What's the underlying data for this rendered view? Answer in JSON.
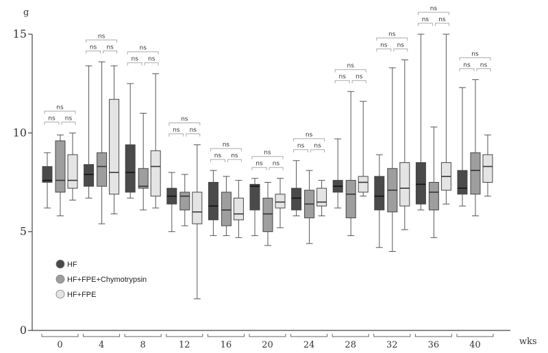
{
  "chart_data": {
    "type": "box",
    "ylabel": "g",
    "xunit": "wks",
    "ylim": [
      0,
      15
    ],
    "yticks": [
      "0",
      "5",
      "10",
      "15"
    ],
    "categories": [
      "0",
      "4",
      "8",
      "12",
      "16",
      "20",
      "24",
      "28",
      "32",
      "36",
      "40"
    ],
    "colors": {
      "HF": "#4a4a4a",
      "HF+FPE+Chymotrypsin": "#9e9e9e",
      "HF+FPE": "#e4e4e4"
    },
    "series": [
      {
        "name": "HF",
        "boxes": [
          {
            "min": 6.2,
            "q1": 7.5,
            "median": 7.6,
            "q3": 8.3,
            "max": 9.0
          },
          {
            "min": 6.7,
            "q1": 7.3,
            "median": 7.9,
            "q3": 8.4,
            "max": 13.4
          },
          {
            "min": 6.7,
            "q1": 7.0,
            "median": 8.0,
            "q3": 9.4,
            "max": 12.5
          },
          {
            "min": 5.0,
            "q1": 6.4,
            "median": 6.8,
            "q3": 7.2,
            "max": 8.0
          },
          {
            "min": 4.8,
            "q1": 5.6,
            "median": 6.3,
            "q3": 7.5,
            "max": 8.1
          },
          {
            "min": 4.8,
            "q1": 6.1,
            "median": 7.3,
            "q3": 7.4,
            "max": 7.7
          },
          {
            "min": 5.8,
            "q1": 6.1,
            "median": 6.7,
            "q3": 7.2,
            "max": 8.6
          },
          {
            "min": 6.2,
            "q1": 7.0,
            "median": 7.3,
            "q3": 7.6,
            "max": 9.7
          },
          {
            "min": 4.2,
            "q1": 6.1,
            "median": 6.8,
            "q3": 7.8,
            "max": 8.9
          },
          {
            "min": 6.1,
            "q1": 6.4,
            "median": 7.4,
            "q3": 8.5,
            "max": 15.0
          },
          {
            "min": 6.3,
            "q1": 6.9,
            "median": 7.2,
            "q3": 8.1,
            "max": 12.3
          }
        ]
      },
      {
        "name": "HF+FPE+Chymotrypsin",
        "boxes": [
          {
            "min": 5.8,
            "q1": 7.0,
            "median": 7.6,
            "q3": 9.6,
            "max": 9.9
          },
          {
            "min": 5.4,
            "q1": 7.3,
            "median": 8.3,
            "q3": 9.0,
            "max": 13.6
          },
          {
            "min": 6.1,
            "q1": 7.2,
            "median": 7.3,
            "q3": 8.2,
            "max": 11.0
          },
          {
            "min": 5.3,
            "q1": 6.1,
            "median": 6.8,
            "q3": 7.0,
            "max": 7.9
          },
          {
            "min": 4.8,
            "q1": 5.3,
            "median": 6.1,
            "q3": 7.0,
            "max": 7.8
          },
          {
            "min": 4.3,
            "q1": 5.0,
            "median": 5.9,
            "q3": 6.7,
            "max": 7.5
          },
          {
            "min": 4.4,
            "q1": 5.7,
            "median": 6.4,
            "q3": 7.1,
            "max": 8.1
          },
          {
            "min": 4.8,
            "q1": 5.7,
            "median": 6.9,
            "q3": 7.6,
            "max": 12.1
          },
          {
            "min": 4.0,
            "q1": 6.0,
            "median": 7.1,
            "q3": 8.2,
            "max": 13.3
          },
          {
            "min": 4.7,
            "q1": 6.1,
            "median": 7.0,
            "q3": 7.5,
            "max": 10.3
          },
          {
            "min": 5.8,
            "q1": 6.9,
            "median": 8.1,
            "q3": 9.0,
            "max": 12.7
          }
        ]
      },
      {
        "name": "HF+FPE",
        "boxes": [
          {
            "min": 6.6,
            "q1": 7.2,
            "median": 7.6,
            "q3": 8.9,
            "max": 10.0
          },
          {
            "min": 5.9,
            "q1": 6.9,
            "median": 8.0,
            "q3": 11.7,
            "max": 13.4
          },
          {
            "min": 6.2,
            "q1": 6.8,
            "median": 8.3,
            "q3": 9.1,
            "max": 13.0
          },
          {
            "min": 1.6,
            "q1": 5.4,
            "median": 6.0,
            "q3": 7.0,
            "max": 9.4
          },
          {
            "min": 4.7,
            "q1": 5.6,
            "median": 5.9,
            "q3": 6.7,
            "max": 7.6
          },
          {
            "min": 5.2,
            "q1": 6.2,
            "median": 6.5,
            "q3": 6.9,
            "max": 7.7
          },
          {
            "min": 5.8,
            "q1": 6.3,
            "median": 6.5,
            "q3": 7.2,
            "max": 7.6
          },
          {
            "min": 6.8,
            "q1": 7.0,
            "median": 7.5,
            "q3": 7.8,
            "max": 11.6
          },
          {
            "min": 5.1,
            "q1": 6.3,
            "median": 7.2,
            "q3": 8.5,
            "max": 13.7
          },
          {
            "min": 6.4,
            "q1": 7.1,
            "median": 7.8,
            "q3": 8.5,
            "max": 15.0
          },
          {
            "min": 6.8,
            "q1": 7.5,
            "median": 8.3,
            "q3": 8.9,
            "max": 9.9
          }
        ]
      }
    ],
    "significance": [
      {
        "group": "0",
        "labels": [
          "ns",
          "ns",
          "ns"
        ]
      },
      {
        "group": "4",
        "labels": [
          "ns",
          "ns",
          "ns"
        ]
      },
      {
        "group": "8",
        "labels": [
          "ns",
          "ns",
          "ns"
        ]
      },
      {
        "group": "12",
        "labels": [
          "ns",
          "ns",
          "ns"
        ]
      },
      {
        "group": "16",
        "labels": [
          "ns",
          "ns",
          "ns"
        ]
      },
      {
        "group": "20",
        "labels": [
          "ns",
          "ns",
          "ns"
        ]
      },
      {
        "group": "24",
        "labels": [
          "ns",
          "ns",
          "ns"
        ]
      },
      {
        "group": "28",
        "labels": [
          "ns",
          "ns",
          "ns"
        ]
      },
      {
        "group": "32",
        "labels": [
          "ns",
          "ns",
          "ns"
        ]
      },
      {
        "group": "36",
        "labels": [
          "ns",
          "ns",
          "ns"
        ]
      },
      {
        "group": "40",
        "labels": [
          "ns",
          "ns",
          "ns"
        ]
      }
    ],
    "legend": {
      "placement": "lower-left",
      "entries": [
        "HF",
        "HF+FPE+Chymotrypsin",
        "HF+FPE"
      ]
    }
  }
}
